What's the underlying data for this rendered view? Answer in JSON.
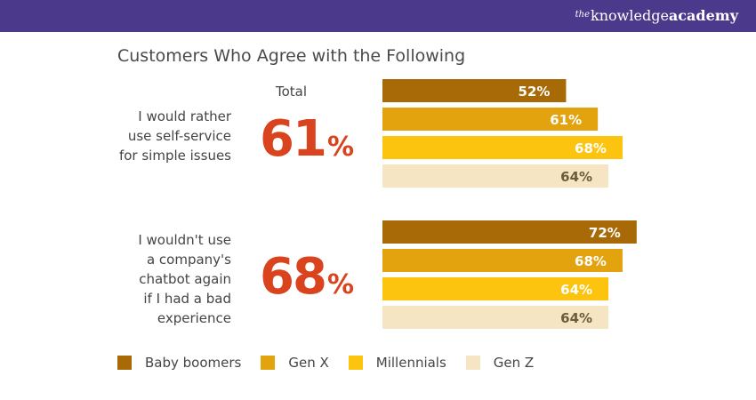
{
  "brand": {
    "prefix": "the",
    "name": "knowledge",
    "suffix": "academy"
  },
  "chart_data": {
    "type": "bar",
    "orientation": "horizontal",
    "title": "Customers Who Agree with the Following",
    "total_label": "Total",
    "xlim": [
      0,
      100
    ],
    "value_suffix": "%",
    "series": [
      {
        "name": "Baby boomers",
        "color": "#a86a06"
      },
      {
        "name": "Gen X",
        "color": "#e2a30f"
      },
      {
        "name": "Millennials",
        "color": "#fcc40f"
      },
      {
        "name": "Gen Z",
        "color": "#f6e5c3"
      }
    ],
    "groups": [
      {
        "statement_lines": [
          "I would rather",
          "use self-service",
          "for simple issues"
        ],
        "total": "61",
        "values": [
          52,
          61,
          68,
          64
        ]
      },
      {
        "statement_lines": [
          "I wouldn't use",
          "a company's",
          "chatbot again",
          "if I had a bad",
          "experience"
        ],
        "total": "68",
        "values": [
          72,
          68,
          64,
          64
        ]
      }
    ],
    "legend_position": "bottom-left"
  }
}
